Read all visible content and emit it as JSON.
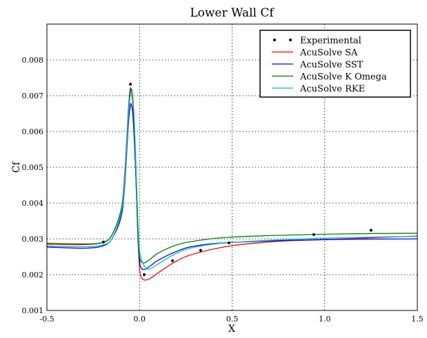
{
  "chart_data": {
    "type": "line",
    "title": "Lower Wall Cf",
    "xlabel": "X",
    "ylabel": "Cf",
    "xlim": [
      -0.5,
      1.5
    ],
    "ylim": [
      0.001,
      0.009
    ],
    "xticks": [
      "-0.5",
      "0.0",
      "0.5",
      "1.0",
      "1.5"
    ],
    "xtick_values": [
      -0.5,
      0.0,
      0.5,
      1.0,
      1.5
    ],
    "yticks": [
      "0.001",
      "0.002",
      "0.003",
      "0.004",
      "0.005",
      "0.006",
      "0.007",
      "0.008"
    ],
    "ytick_values": [
      0.001,
      0.002,
      0.003,
      0.004,
      0.005,
      0.006,
      0.007,
      0.008
    ],
    "grid": true,
    "legend_position": "top-right",
    "experimental": {
      "name": "Experimental",
      "color": "#000000",
      "x": [
        -0.195,
        -0.049,
        0.025,
        0.178,
        0.33,
        0.483,
        0.941,
        1.25
      ],
      "y": [
        0.00291,
        0.00732,
        0.002,
        0.00239,
        0.00268,
        0.00289,
        0.00312,
        0.00324
      ]
    },
    "series": [
      {
        "name": "AcuSolve SA",
        "color": "#ff0000",
        "x": [
          -0.5,
          -0.3,
          -0.2,
          -0.15,
          -0.1,
          -0.08,
          -0.06,
          -0.05,
          -0.04,
          -0.03,
          -0.02,
          -0.01,
          0.0,
          0.01,
          0.03,
          0.06,
          0.1,
          0.2,
          0.3,
          0.5,
          0.75,
          1.0,
          1.25,
          1.5
        ],
        "y": [
          0.00285,
          0.00284,
          0.0029,
          0.0031,
          0.0038,
          0.0048,
          0.0066,
          0.0072,
          0.007,
          0.0062,
          0.0048,
          0.0032,
          0.0022,
          0.00192,
          0.00185,
          0.0019,
          0.00205,
          0.00238,
          0.00259,
          0.00281,
          0.00293,
          0.00298,
          0.00303,
          0.00308
        ]
      },
      {
        "name": "AcuSolve SST",
        "color": "#0000ff",
        "x": [
          -0.5,
          -0.3,
          -0.2,
          -0.15,
          -0.1,
          -0.08,
          -0.06,
          -0.05,
          -0.045,
          -0.035,
          -0.02,
          -0.01,
          0.0,
          0.01,
          0.03,
          0.06,
          0.1,
          0.2,
          0.3,
          0.5,
          1.0,
          1.5
        ],
        "y": [
          0.00277,
          0.00274,
          0.0028,
          0.003,
          0.0036,
          0.0045,
          0.0062,
          0.0067,
          0.00675,
          0.0064,
          0.0048,
          0.0033,
          0.0024,
          0.00218,
          0.00215,
          0.00225,
          0.0024,
          0.00265,
          0.0028,
          0.0029,
          0.00298,
          0.003
        ]
      },
      {
        "name": "AcuSolve K Omega",
        "color": "#007f00",
        "x": [
          -0.5,
          -0.3,
          -0.2,
          -0.15,
          -0.1,
          -0.08,
          -0.06,
          -0.05,
          -0.04,
          -0.03,
          -0.02,
          -0.01,
          0.0,
          0.02,
          0.05,
          0.1,
          0.2,
          0.3,
          0.5,
          1.0,
          1.5
        ],
        "y": [
          0.00288,
          0.00286,
          0.0029,
          0.0031,
          0.0038,
          0.0047,
          0.0065,
          0.0071,
          0.00712,
          0.0064,
          0.0049,
          0.0033,
          0.0025,
          0.00233,
          0.0024,
          0.0026,
          0.00283,
          0.00294,
          0.00305,
          0.00313,
          0.00316
        ]
      },
      {
        "name": "AcuSolve RKE",
        "color": "#00bfbf",
        "x": [
          -0.5,
          -0.3,
          -0.2,
          -0.15,
          -0.1,
          -0.08,
          -0.06,
          -0.05,
          -0.04,
          -0.03,
          -0.02,
          -0.01,
          0.0,
          0.02,
          0.05,
          0.1,
          0.2,
          0.3,
          0.5,
          1.0,
          1.5
        ],
        "y": [
          0.0028,
          0.00278,
          0.00283,
          0.003,
          0.0037,
          0.0046,
          0.0064,
          0.007,
          0.0071,
          0.0065,
          0.0052,
          0.0037,
          0.0027,
          0.0023,
          0.00215,
          0.0023,
          0.0026,
          0.00277,
          0.0029,
          0.00302,
          0.00307
        ]
      }
    ]
  }
}
